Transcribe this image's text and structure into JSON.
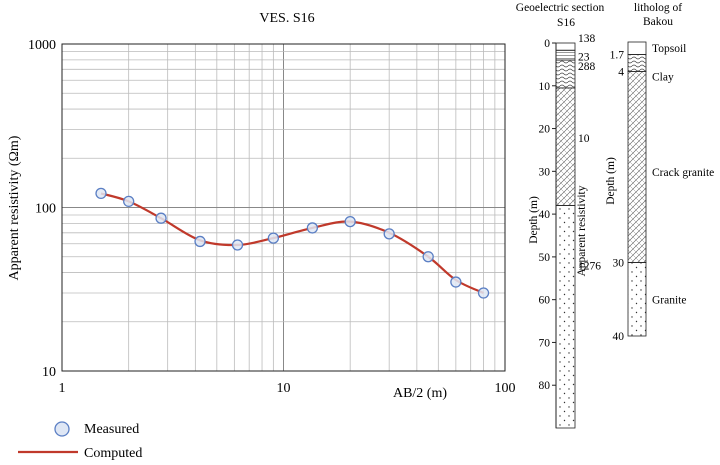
{
  "chart_data": [
    {
      "type": "scatter",
      "title": "VES. S16",
      "xlabel": "AB/2 (m)",
      "ylabel": "Apparent resistivity (Ωm)",
      "x_scale": "log",
      "y_scale": "log",
      "xlim": [
        1,
        100
      ],
      "ylim": [
        10,
        1000
      ],
      "x_ticks": [
        "1",
        "10",
        "100"
      ],
      "y_ticks": [
        "10",
        "100",
        "1000"
      ],
      "grid": true,
      "legend": "bottom-left",
      "series": [
        {
          "name": "Measured",
          "marker": "circle",
          "color": "#5b7fc4",
          "x": [
            1.5,
            2,
            2.8,
            4.2,
            6.2,
            9,
            13.5,
            20,
            30,
            45,
            60,
            80
          ],
          "y": [
            122,
            109,
            86,
            62,
            59,
            65,
            75,
            82,
            69,
            50,
            35,
            30
          ]
        },
        {
          "name": "Computed",
          "marker": "line",
          "color": "#c0392b",
          "x": [
            1.5,
            2,
            2.8,
            4.2,
            6.2,
            9,
            13.5,
            20,
            30,
            45,
            60,
            80
          ],
          "y": [
            122,
            109,
            86,
            63,
            59,
            65,
            75,
            82,
            70,
            50,
            36,
            30
          ]
        }
      ]
    },
    {
      "type": "table",
      "title": "Geoelectric section",
      "subtitle": "S16",
      "ylabel": "Depth (m)",
      "column_label": "Apparent resistivity",
      "ylim": [
        0,
        90
      ],
      "y_ticks": [
        "0",
        "10",
        "20",
        "30",
        "40",
        "50",
        "60",
        "70",
        "80"
      ],
      "layers": [
        {
          "top": 0,
          "bottom": 1.7,
          "resistivity": "138",
          "pattern": "none"
        },
        {
          "top": 1.7,
          "bottom": 4,
          "resistivity": "23",
          "pattern": "line"
        },
        {
          "top": 4,
          "bottom": 10.5,
          "resistivity": "288",
          "pattern": "wavy"
        },
        {
          "top": 10.5,
          "bottom": 38,
          "resistivity": "10",
          "pattern": "hatch"
        },
        {
          "top": 38,
          "bottom": 90,
          "resistivity": "1276",
          "pattern": "dots"
        }
      ]
    },
    {
      "type": "table",
      "title": "litholog of",
      "subtitle": "Bakou",
      "ylabel": "Depth (m)",
      "ylim": [
        0,
        40
      ],
      "layers": [
        {
          "top": 0,
          "bottom": 1.7,
          "label": "Topsoil",
          "depth_label": "1.7",
          "pattern": "none"
        },
        {
          "top": 1.7,
          "bottom": 4,
          "label": "Clay",
          "depth_label": "4",
          "pattern": "wavy"
        },
        {
          "top": 4,
          "bottom": 30,
          "label": "Crack granite",
          "depth_label": "30",
          "pattern": "hatch"
        },
        {
          "top": 30,
          "bottom": 40,
          "label": "Granite",
          "depth_label": "40",
          "pattern": "dots"
        }
      ]
    }
  ]
}
